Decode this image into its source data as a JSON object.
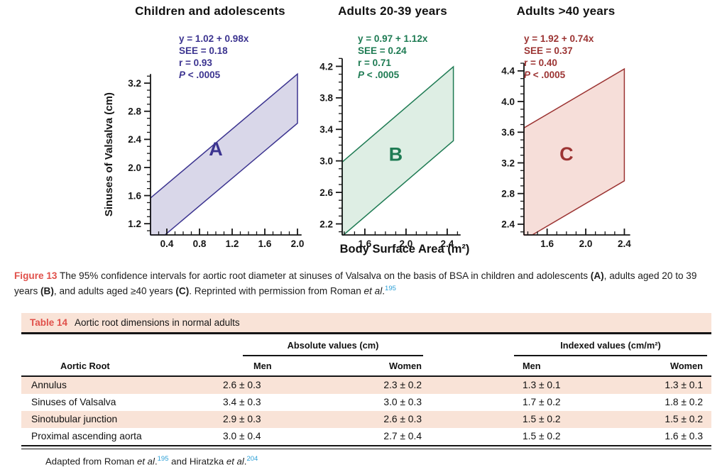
{
  "figure": {
    "xlabel": "Body Surface Area (m²)",
    "caption": {
      "segments": [
        {
          "text": "Figure 13",
          "style": "label"
        },
        {
          "text": " The 95% confidence intervals for aortic root diameter at sinuses of Valsalva on the basis of BSA in children and adolescents ",
          "style": "plain"
        },
        {
          "text": "(A)",
          "style": "b"
        },
        {
          "text": ", adults aged 20 to 39 years ",
          "style": "plain"
        },
        {
          "text": "(B)",
          "style": "b"
        },
        {
          "text": ", and adults aged ≥40 years ",
          "style": "plain"
        },
        {
          "text": "(C)",
          "style": "b"
        },
        {
          "text": ". Reprinted with permission from Roman ",
          "style": "plain"
        },
        {
          "text": "et al",
          "style": "i"
        },
        {
          "text": ".",
          "style": "plain"
        },
        {
          "text": "195",
          "style": "sup"
        }
      ]
    }
  },
  "chart_data": [
    {
      "type": "area",
      "panel": "A",
      "title": "Children and adolescents",
      "stats": [
        "y = 1.02 + 0.98x",
        "SEE = 0.18",
        "r = 0.93",
        "P < .0005"
      ],
      "regression": {
        "intercept": 1.02,
        "slope": 0.98,
        "ci_half_width": 0.35
      },
      "band_x": [
        0.2,
        2.0
      ],
      "xlim": [
        0.2,
        2.05
      ],
      "ylim": [
        1.04,
        3.33
      ],
      "xticks": [
        "0.4",
        "0.8",
        "1.2",
        "1.6",
        "2.0"
      ],
      "yticks": [
        "1.2",
        "1.6",
        "2.0",
        "2.4",
        "2.8",
        "3.2"
      ],
      "minor_tick_step": 0.1,
      "xlabel": "Body Surface Area (m²)",
      "ylabel": "Sinuses of Valsalva (cm)",
      "colors": {
        "line": "#3c3490",
        "fill": "#d9d7e9",
        "title": "#5b3d94"
      }
    },
    {
      "type": "area",
      "panel": "B",
      "title": "Adults 20-39 years",
      "stats": [
        "y = 0.97 + 1.12x",
        "SEE = 0.24",
        "r = 0.71",
        "P < .0005"
      ],
      "regression": {
        "intercept": 0.97,
        "slope": 1.12,
        "ci_half_width": 0.47
      },
      "band_x": [
        1.38,
        2.46
      ],
      "xlim": [
        1.38,
        2.53
      ],
      "ylim": [
        2.06,
        4.3
      ],
      "xticks": [
        "1.6",
        "2.0",
        "2.4"
      ],
      "yticks": [
        "2.2",
        "2.6",
        "3.0",
        "3.4",
        "3.8",
        "4.2"
      ],
      "minor_tick_step": 0.1,
      "xlabel": "Body Surface Area (m²)",
      "ylabel": "",
      "colors": {
        "line": "#1e7b53",
        "fill": "#deeee4",
        "title": "#147449"
      }
    },
    {
      "type": "area",
      "panel": "C",
      "title": "Adults >40 years",
      "stats": [
        "y = 1.92 + 0.74x",
        "SEE = 0.37",
        "r = 0.40",
        "P < .0005"
      ],
      "regression": {
        "intercept": 1.92,
        "slope": 0.74,
        "ci_half_width": 0.73
      },
      "band_x": [
        1.36,
        2.4
      ],
      "xlim": [
        1.36,
        2.46
      ],
      "ylim": [
        2.26,
        4.5
      ],
      "xticks": [
        "1.6",
        "2.0",
        "2.4"
      ],
      "yticks": [
        "2.4",
        "2.8",
        "3.2",
        "3.6",
        "4.0",
        "4.4"
      ],
      "minor_tick_step": 0.1,
      "xlabel": "Body Surface Area (m²)",
      "ylabel": "",
      "colors": {
        "line": "#9c3433",
        "fill": "#f6ded9",
        "title": "#a52e2e"
      }
    }
  ],
  "table": {
    "label": "Table 14",
    "title": "Aortic root dimensions in normal adults",
    "col_groups": [
      {
        "label": "Absolute values (cm)"
      },
      {
        "label": "Indexed values (cm/m²)"
      }
    ],
    "row_header": "Aortic Root",
    "sub_headers": [
      "Men",
      "Women",
      "Men",
      "Women"
    ],
    "rows": [
      {
        "label": "Annulus",
        "values": [
          "2.6 ± 0.3",
          "2.3 ± 0.2",
          "1.3 ± 0.1",
          "1.3 ± 0.1"
        ]
      },
      {
        "label": "Sinuses of Valsalva",
        "values": [
          "3.4 ± 0.3",
          "3.0 ± 0.3",
          "1.7 ± 0.2",
          "1.8 ± 0.2"
        ]
      },
      {
        "label": "Sinotubular junction",
        "values": [
          "2.9 ± 0.3",
          "2.6 ± 0.3",
          "1.5 ± 0.2",
          "1.5 ± 0.2"
        ]
      },
      {
        "label": "Proximal ascending aorta",
        "values": [
          "3.0 ± 0.4",
          "2.7 ± 0.4",
          "1.5 ± 0.2",
          "1.6 ± 0.3"
        ]
      }
    ]
  },
  "footnote": {
    "segments": [
      {
        "text": "Adapted from Roman ",
        "style": "plain"
      },
      {
        "text": "et al",
        "style": "i"
      },
      {
        "text": ".",
        "style": "plain"
      },
      {
        "text": "195",
        "style": "sup"
      },
      {
        "text": " and Hiratzka ",
        "style": "plain"
      },
      {
        "text": "et al",
        "style": "i"
      },
      {
        "text": ".",
        "style": "plain"
      },
      {
        "text": "204",
        "style": "sup"
      }
    ]
  }
}
